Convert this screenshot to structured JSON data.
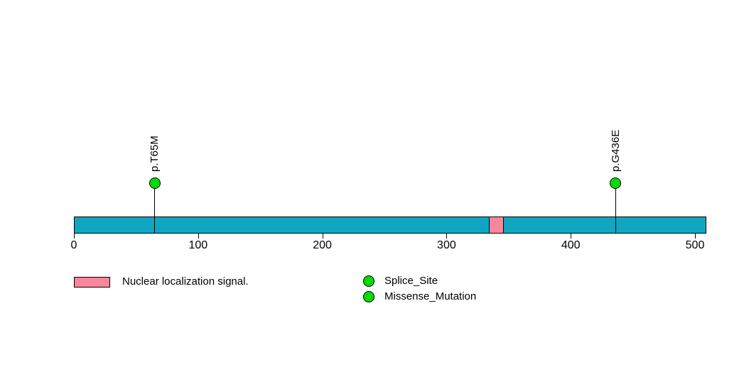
{
  "chart_data": {
    "type": "lollipop",
    "title": "",
    "xlabel": "",
    "axis": {
      "min": 0,
      "max": 510,
      "ticks": [
        0,
        100,
        200,
        300,
        400,
        500
      ]
    },
    "protein": {
      "start": 0,
      "end": 509
    },
    "backbone_color": "#10A6C2",
    "domains": [
      {
        "name": "Nuclear localization signal.",
        "start": 334,
        "end": 346,
        "color": "#F7879C"
      }
    ],
    "mutations": [
      {
        "label": "p.T65M",
        "position": 65,
        "color": "#00DC00"
      },
      {
        "label": "p.G436E",
        "position": 436,
        "color": "#00DC00"
      }
    ],
    "legend": {
      "domain_items": [
        {
          "label": "Nuclear localization signal.",
          "color": "#F7879C",
          "shape": "rect"
        }
      ],
      "mutation_items": [
        {
          "label": "Splice_Site",
          "color": "#00DC00",
          "shape": "circle"
        },
        {
          "label": "Missense_Mutation",
          "color": "#00DC00",
          "shape": "circle"
        }
      ]
    }
  }
}
